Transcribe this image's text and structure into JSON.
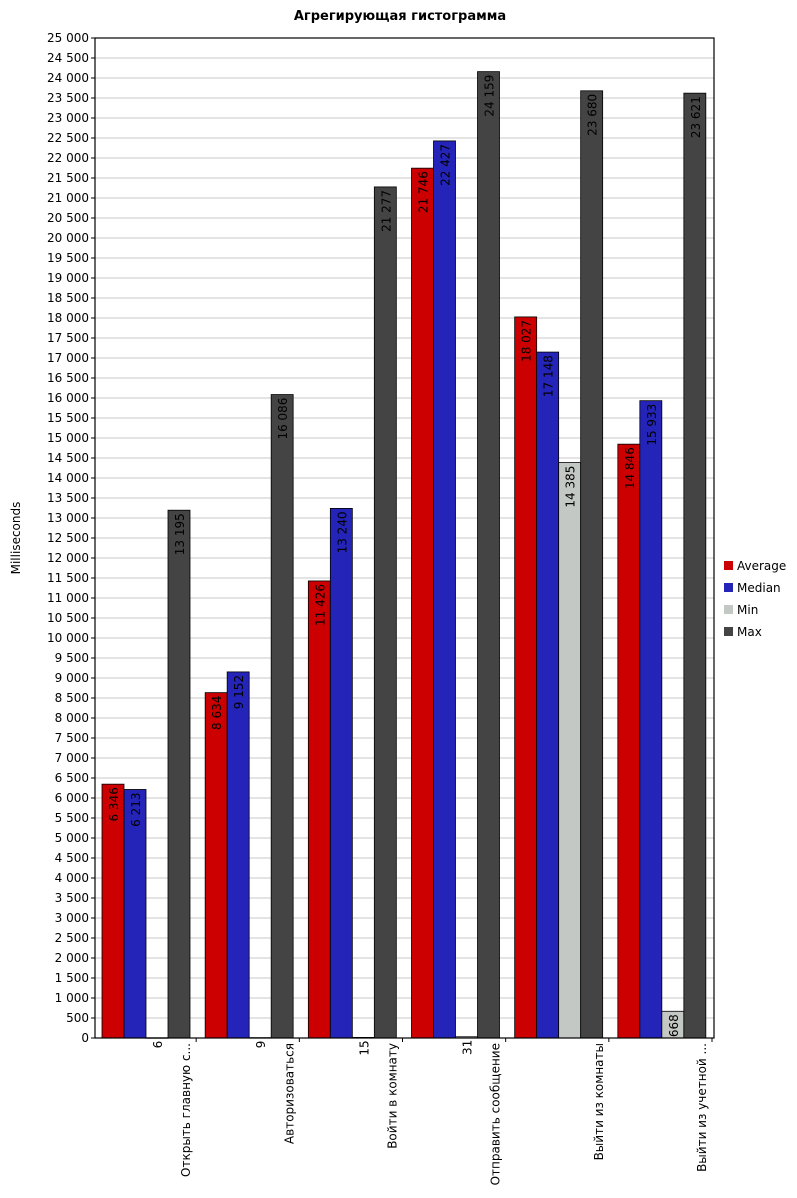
{
  "chart_data": {
    "type": "bar",
    "title": "Агрегирующая гистограмма",
    "ylabel": "Milliseconds",
    "xlabel": "",
    "ylim": [
      0,
      25000
    ],
    "ytick_step": 500,
    "grid": true,
    "legend_position": "right",
    "categories": [
      "Открыть главную с...",
      "Авторизоваться",
      "Войти в комнату",
      "Отправить сообщение",
      "Выйти из комнаты",
      "Выйти из учетной ..."
    ],
    "series": [
      {
        "name": "Average",
        "color": "#cc0000",
        "values": [
          6346,
          8634,
          11426,
          21746,
          18027,
          14846
        ],
        "labels": [
          "6 346",
          "8 634",
          "11 426",
          "21 746",
          "18 027",
          "14 846"
        ]
      },
      {
        "name": "Median",
        "color": "#2424b8",
        "values": [
          6213,
          9152,
          13240,
          22427,
          17148,
          15933
        ],
        "labels": [
          "6 213",
          "9 152",
          "13 240",
          "22 427",
          "17 148",
          "15 933"
        ]
      },
      {
        "name": "Min",
        "color": "#c4c8c4",
        "values": [
          6,
          9,
          15,
          31,
          14385,
          668
        ],
        "labels": [
          "6",
          "9",
          "15",
          "31",
          "14 385",
          "668"
        ]
      },
      {
        "name": "Max",
        "color": "#444444",
        "values": [
          13195,
          16086,
          21277,
          24159,
          23680,
          23621
        ],
        "labels": [
          "13 195",
          "16 086",
          "21 277",
          "24 159",
          "23 680",
          "23 621"
        ]
      }
    ]
  }
}
